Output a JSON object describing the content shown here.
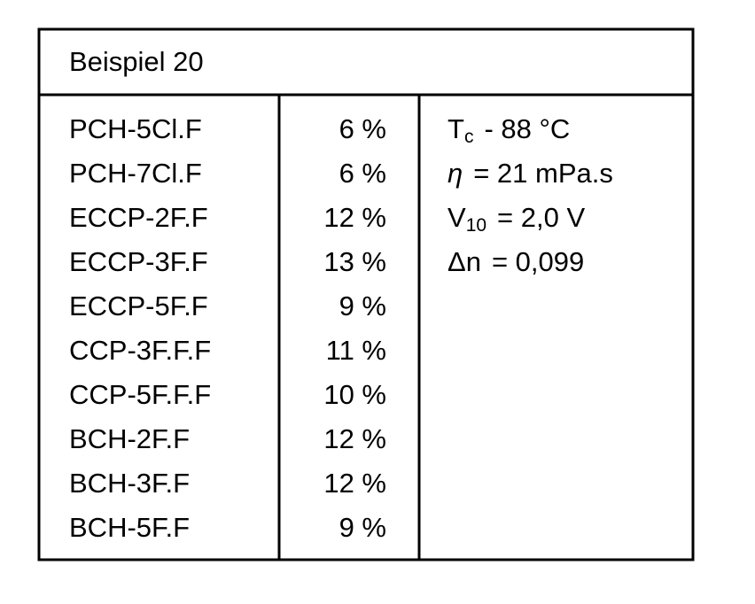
{
  "title": "Beispiel 20",
  "rows": [
    [
      "PCH-5Cl.F",
      "6 %"
    ],
    [
      "PCH-7Cl.F",
      "6 %"
    ],
    [
      "ECCP-2F.F",
      "12 %"
    ],
    [
      "ECCP-3F.F",
      "13 %"
    ],
    [
      "ECCP-5F.F",
      "9 %"
    ],
    [
      "CCP-3F.F.F",
      "11 %"
    ],
    [
      "CCP-5F.F.F",
      "10 %"
    ],
    [
      "BCH-2F.F",
      "12 %"
    ],
    [
      "BCH-3F.F",
      "12 %"
    ],
    [
      "BCH-5F.F",
      "9 %"
    ]
  ],
  "properties": [
    {
      "symbol": "T",
      "subscript": "c",
      "value": "- 88 °C"
    },
    {
      "symbol": "η",
      "value": "= 21 mPa.s"
    },
    {
      "symbol": "V",
      "subscript": "10",
      "value": "= 2,0 V"
    },
    {
      "symbol": "Δn",
      "value": "= 0,099"
    }
  ]
}
